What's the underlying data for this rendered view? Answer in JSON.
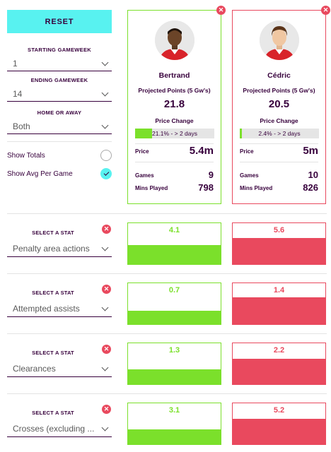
{
  "sidebar": {
    "reset_label": "RESET",
    "starting_gameweek": {
      "label": "STARTING GAMEWEEK",
      "value": "1"
    },
    "ending_gameweek": {
      "label": "ENDING GAMEWEEK",
      "value": "14"
    },
    "home_or_away": {
      "label": "HOME OR AWAY",
      "value": "Both"
    },
    "show_totals": {
      "label": "Show Totals",
      "checked": false
    },
    "show_avg": {
      "label": "Show Avg Per Game",
      "checked": true
    }
  },
  "colors": {
    "player1": "#7be02b",
    "player2": "#e9495e",
    "accent": "#58f2f0",
    "text": "#37003c"
  },
  "players": [
    {
      "name": "Bertrand",
      "projected_label": "Projected Points (5 Gw's)",
      "projected_points": "21.8",
      "price_change_label": "Price Change",
      "price_change_text": "21.1% - > 2 days",
      "price_change_pct": 21.1,
      "price_label": "Price",
      "price": "5.4m",
      "games_label": "Games",
      "games": "9",
      "mins_label": "Mins Played",
      "mins": "798"
    },
    {
      "name": "Cédric",
      "projected_label": "Projected Points (5 Gw's)",
      "projected_points": "20.5",
      "price_change_label": "Price Change",
      "price_change_text": "2.4% - > 2 days",
      "price_change_pct": 2.4,
      "price_label": "Price",
      "price": "5m",
      "games_label": "Games",
      "games": "10",
      "mins_label": "Mins Played",
      "mins": "826"
    }
  ],
  "stats": [
    {
      "select_label": "SELECT A STAT",
      "name": "Penalty area actions",
      "p1": "4.1",
      "p2": "5.6",
      "p1_fill": 0.47,
      "p2_fill": 0.64
    },
    {
      "select_label": "SELECT A STAT",
      "name": "Attempted assists",
      "p1": "0.7",
      "p2": "1.4",
      "p1_fill": 0.33,
      "p2_fill": 0.66
    },
    {
      "select_label": "SELECT A STAT",
      "name": "Clearances",
      "p1": "1.3",
      "p2": "2.2",
      "p1_fill": 0.37,
      "p2_fill": 0.62
    },
    {
      "select_label": "SELECT A STAT",
      "name": "Crosses (excluding ...",
      "p1": "3.1",
      "p2": "5.2",
      "p1_fill": 0.37,
      "p2_fill": 0.62
    }
  ]
}
